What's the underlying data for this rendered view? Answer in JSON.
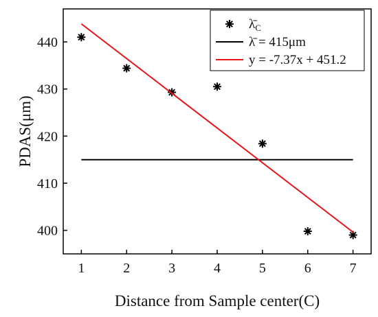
{
  "chart_data": {
    "type": "scatter",
    "xlabel": "Distance from Sample center(C)",
    "ylabel": "PDAS(μm)",
    "xlim": [
      0.6,
      7.4
    ],
    "ylim": [
      395,
      447
    ],
    "xticks": [
      1,
      2,
      3,
      4,
      5,
      6,
      7
    ],
    "yticks": [
      400,
      410,
      420,
      430,
      440
    ],
    "grid": false,
    "legend_position": "top-right",
    "series": [
      {
        "name": "λ̄C",
        "legend_main": "λ̄",
        "legend_sub": "C",
        "kind": "scatter",
        "marker": "asterisk",
        "color": "#000000",
        "x": [
          1,
          2,
          3,
          4,
          5,
          6,
          7
        ],
        "y": [
          441.0,
          434.4,
          429.3,
          430.5,
          418.4,
          399.8,
          399.0
        ]
      },
      {
        "name": "λ̄ = 415μm",
        "legend_main": "λ̄ = 415μm",
        "kind": "line",
        "color": "#000000",
        "x": [
          1,
          7
        ],
        "y": [
          415,
          415
        ]
      },
      {
        "name": "y = -7.37x + 451.2",
        "legend_main": "y = -7.37x + 451.2",
        "kind": "line",
        "color": "#e8141a",
        "x": [
          1,
          7
        ],
        "y": [
          443.83,
          399.61
        ]
      }
    ]
  }
}
